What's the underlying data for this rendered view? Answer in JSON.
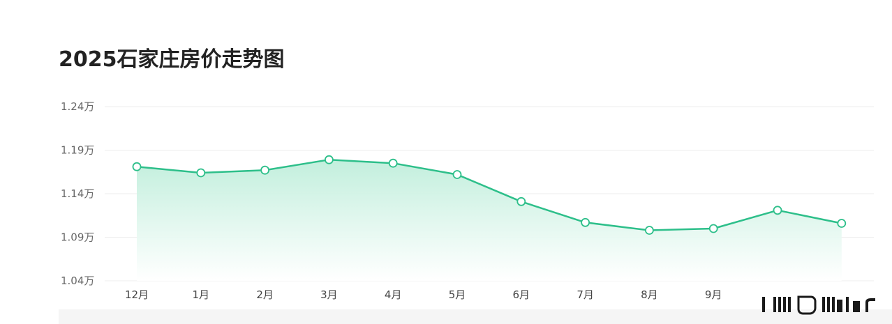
{
  "chart_data": {
    "type": "area",
    "title": "2025石家庄房价走势图",
    "categories": [
      "12月",
      "1月",
      "2月",
      "3月",
      "4月",
      "5月",
      "6月",
      "7月",
      "8月",
      "9月",
      "",
      ""
    ],
    "values": [
      1.171,
      1.164,
      1.167,
      1.179,
      1.175,
      1.162,
      1.131,
      1.107,
      1.098,
      1.1,
      1.121,
      1.106
    ],
    "yticks": [
      "1.04万",
      "1.09万",
      "1.14万",
      "1.19万",
      "1.24万"
    ],
    "ylim": [
      1.04,
      1.24
    ],
    "grid": true,
    "legend": "none",
    "colors": {
      "line": "#2dbf8a",
      "area_top": "#bfeedb",
      "area_bottom": "#ffffff",
      "marker_fill": "#ffffff",
      "grid": "#eeeeee"
    }
  }
}
